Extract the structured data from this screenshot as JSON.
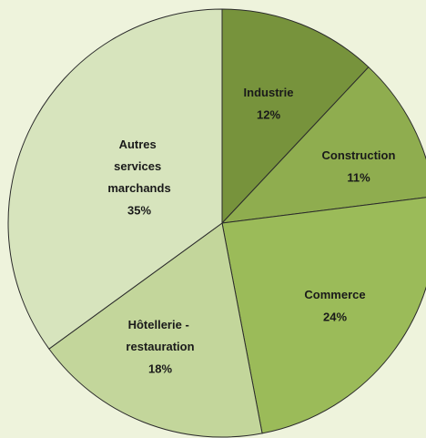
{
  "chart_data": {
    "type": "pie",
    "categories": [
      "Industrie",
      "Construction",
      "Commerce",
      "Hôtellerie - restauration",
      "Autres services marchands"
    ],
    "values": [
      12,
      11,
      24,
      18,
      35
    ],
    "value_labels": [
      "12%",
      "11%",
      "24%",
      "18%",
      "35%"
    ],
    "colors": [
      "#77933c",
      "#8fad4f",
      "#9bbb59",
      "#c3d69b",
      "#d7e4bd"
    ]
  }
}
